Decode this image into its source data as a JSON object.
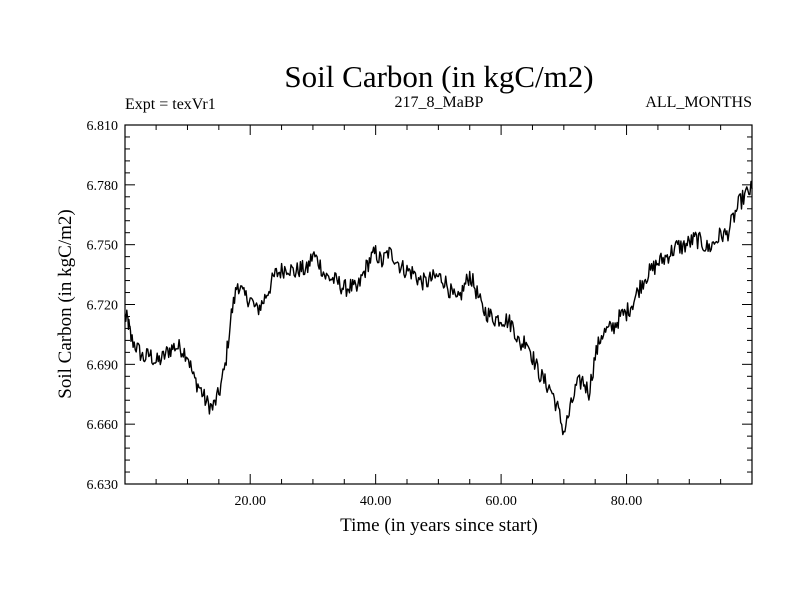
{
  "chart_data": {
    "type": "line",
    "title": "Soil Carbon (in kgC/m2)",
    "subtitle_left": "Expt = texVr1",
    "subtitle_center": "217_8_MaBP",
    "subtitle_right": "ALL_MONTHS",
    "xlabel": "Time (in years since start)",
    "ylabel": "Soil Carbon (in kgC/m2)",
    "xlim": [
      0.04,
      100
    ],
    "ylim": [
      6.63,
      6.81
    ],
    "x_ticks": [
      20,
      40,
      60,
      80
    ],
    "x_tick_labels": [
      "20.00",
      "40.00",
      "60.00",
      "80.00"
    ],
    "y_ticks": [
      6.63,
      6.66,
      6.69,
      6.72,
      6.75,
      6.78,
      6.81
    ],
    "y_tick_labels": [
      "6.630",
      "6.660",
      "6.690",
      "6.720",
      "6.750",
      "6.780",
      "6.810"
    ],
    "grid": false,
    "line_color": "#000000",
    "series": [
      {
        "name": "Soil Carbon",
        "x": [
          0,
          0.5,
          1,
          2,
          3,
          4,
          5,
          6,
          7,
          8,
          9,
          10,
          11,
          12,
          13,
          14,
          15,
          16,
          17,
          18,
          19,
          20,
          21,
          22,
          23,
          24,
          25,
          26,
          27,
          28,
          29,
          30,
          31,
          32,
          33,
          34,
          35,
          36,
          37,
          38,
          39,
          40,
          41,
          42,
          43,
          44,
          45,
          46,
          47,
          48,
          49,
          50,
          51,
          52,
          53,
          54,
          55,
          56,
          57,
          58,
          59,
          60,
          61,
          62,
          63,
          64,
          65,
          66,
          67,
          68,
          69,
          70,
          71,
          72,
          73,
          74,
          75,
          76,
          77,
          78,
          79,
          80,
          81,
          82,
          83,
          84,
          85,
          86,
          87,
          88,
          89,
          90,
          91,
          92,
          93,
          94,
          95,
          96,
          97,
          98,
          99,
          100
        ],
        "values": [
          6.714,
          6.712,
          6.703,
          6.698,
          6.693,
          6.695,
          6.691,
          6.693,
          6.697,
          6.699,
          6.698,
          6.695,
          6.683,
          6.678,
          6.671,
          6.668,
          6.675,
          6.689,
          6.715,
          6.731,
          6.724,
          6.723,
          6.717,
          6.721,
          6.728,
          6.735,
          6.737,
          6.739,
          6.736,
          6.738,
          6.737,
          6.745,
          6.741,
          6.734,
          6.733,
          6.731,
          6.728,
          6.729,
          6.727,
          6.735,
          6.742,
          6.746,
          6.741,
          6.746,
          6.744,
          6.739,
          6.737,
          6.736,
          6.732,
          6.731,
          6.733,
          6.734,
          6.732,
          6.726,
          6.721,
          6.728,
          6.735,
          6.727,
          6.718,
          6.715,
          6.713,
          6.713,
          6.712,
          6.709,
          6.699,
          6.703,
          6.694,
          6.686,
          6.681,
          6.677,
          6.668,
          6.656,
          6.667,
          6.679,
          6.682,
          6.676,
          6.694,
          6.705,
          6.707,
          6.709,
          6.714,
          6.716,
          6.721,
          6.728,
          6.734,
          6.737,
          6.741,
          6.743,
          6.746,
          6.749,
          6.749,
          6.751,
          6.753,
          6.751,
          6.748,
          6.751,
          6.755,
          6.755,
          6.763,
          6.771,
          6.775,
          6.778
        ]
      }
    ]
  }
}
